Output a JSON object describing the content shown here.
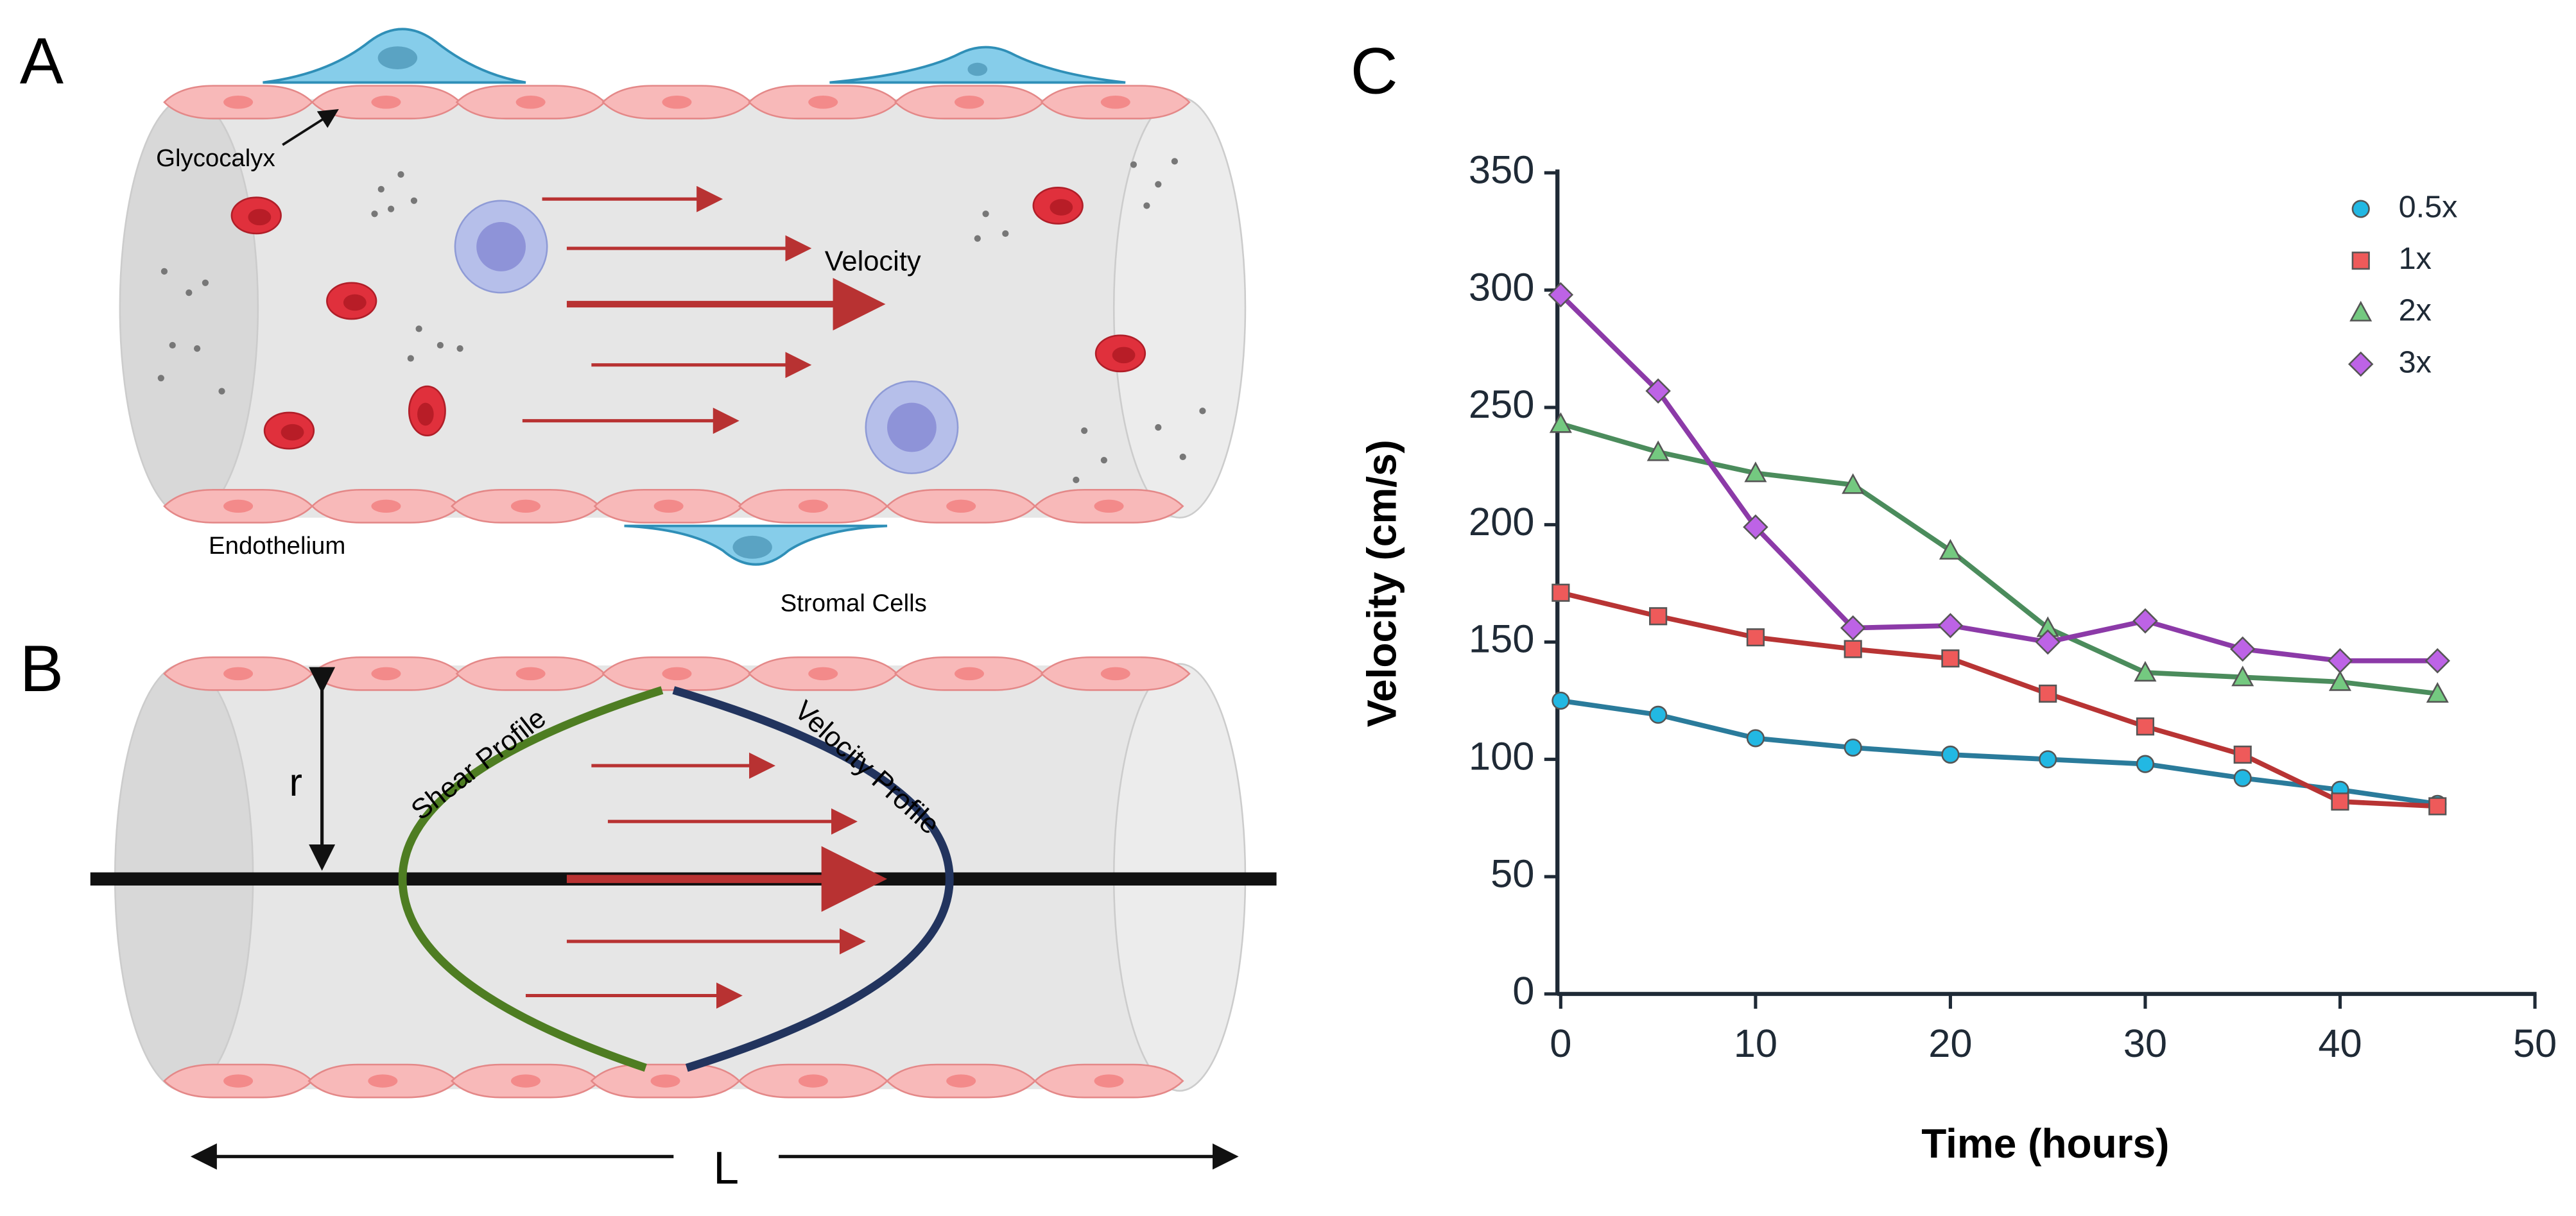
{
  "diagram_a": {
    "label": "A",
    "glycocalyx": "Glycocalyx",
    "velocity": "Velocity",
    "endothelium": "Endothelium",
    "stromal_cells": "Stromal Cells"
  },
  "diagram_b": {
    "label": "B",
    "radius": "r",
    "shear_profile": "Shear Profile",
    "velocity_profile": "Velocity Profile",
    "length": "L"
  },
  "chart_data": {
    "type": "line",
    "panel_label": "C",
    "x_label": "Time (hours)",
    "y_label": "Velocity (cm/s)",
    "x": [
      0,
      5,
      10,
      15,
      20,
      25,
      30,
      35,
      40,
      45
    ],
    "series": [
      {
        "name": "0.5x",
        "color": "#2a7b9b",
        "marker_color": "#22b8e3",
        "marker": "circle",
        "values": [
          125,
          119,
          109,
          105,
          102,
          100,
          98,
          92,
          87,
          81
        ]
      },
      {
        "name": "1x",
        "color": "#b83434",
        "marker_color": "#ee5a5a",
        "marker": "square",
        "values": [
          171,
          161,
          152,
          147,
          143,
          128,
          114,
          102,
          82,
          80
        ]
      },
      {
        "name": "2x",
        "color": "#4b8c5c",
        "marker_color": "#74c980",
        "marker": "triangle",
        "values": [
          243,
          231,
          222,
          217,
          189,
          156,
          137,
          135,
          133,
          128
        ]
      },
      {
        "name": "3x",
        "color": "#8c3aa8",
        "marker_color": "#bd63e6",
        "marker": "diamond",
        "values": [
          298,
          257,
          199,
          156,
          157,
          150,
          159,
          147,
          142,
          142
        ]
      }
    ],
    "xlim": [
      0,
      50
    ],
    "xticks": [
      0,
      10,
      20,
      30,
      40,
      50
    ],
    "ylim": [
      0,
      350
    ],
    "yticks": [
      0,
      50,
      100,
      150,
      200,
      250,
      300,
      350
    ],
    "grid": false,
    "legend": "upper right"
  }
}
